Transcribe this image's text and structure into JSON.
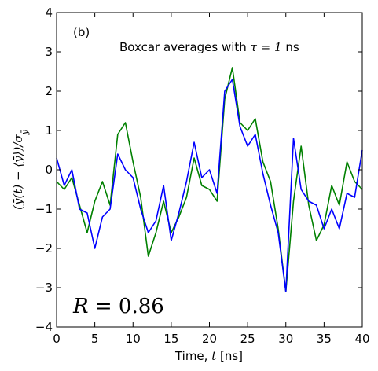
{
  "chart_data": {
    "type": "line",
    "panel_label": "(b)",
    "title_prefix": "Boxcar averages with ",
    "title_math": "τ",
    "title_eq": " = 1",
    "title_suffix": " ns",
    "xlabel_prefix": "Time, ",
    "xlabel_math": "t",
    "xlabel_suffix": " [ns]",
    "ylabel_math": "(ȳ(t) − ⟨ȳ⟩)/σ",
    "ylabel_sub": "ȳ",
    "corr_label_math": "R",
    "corr_label_eq": " = ",
    "corr_label_value": "0.86",
    "xlim": [
      0,
      40
    ],
    "ylim": [
      -4,
      4
    ],
    "x_ticks": [
      "0",
      "5",
      "10",
      "15",
      "20",
      "25",
      "30",
      "35",
      "40"
    ],
    "y_ticks": [
      "4",
      "3",
      "2",
      "1",
      "0",
      "−1",
      "−2",
      "−3",
      "−4"
    ],
    "x_tick_values": [
      0,
      5,
      10,
      15,
      20,
      25,
      30,
      35,
      40
    ],
    "y_tick_values": [
      4,
      3,
      2,
      1,
      0,
      -1,
      -2,
      -3,
      -4
    ],
    "colors": {
      "green": "#008000",
      "blue": "#0000ff"
    },
    "series": [
      {
        "color": "green",
        "x": [
          0,
          1,
          2,
          3,
          4,
          5,
          6,
          7,
          8,
          9,
          10,
          11,
          12,
          13,
          14,
          15,
          16,
          17,
          18,
          19,
          20,
          21,
          22,
          23,
          24,
          25,
          26,
          27,
          28,
          29,
          30,
          31,
          32,
          33,
          34,
          35,
          36,
          37,
          38,
          39,
          40
        ],
        "y": [
          -0.3,
          -0.5,
          -0.2,
          -0.9,
          -1.6,
          -0.8,
          -0.3,
          -0.9,
          0.9,
          1.2,
          0.2,
          -0.7,
          -2.2,
          -1.6,
          -0.8,
          -1.6,
          -1.2,
          -0.7,
          0.3,
          -0.4,
          -0.5,
          -0.8,
          1.8,
          2.6,
          1.2,
          1.0,
          1.3,
          0.2,
          -0.3,
          -1.5,
          -3.1,
          -0.8,
          0.6,
          -0.9,
          -1.8,
          -1.4,
          -0.4,
          -0.9,
          0.2,
          -0.3,
          -0.5
        ]
      },
      {
        "color": "blue",
        "x": [
          0,
          1,
          2,
          3,
          4,
          5,
          6,
          7,
          8,
          9,
          10,
          11,
          12,
          13,
          14,
          15,
          16,
          17,
          18,
          19,
          20,
          21,
          22,
          23,
          24,
          25,
          26,
          27,
          28,
          29,
          30,
          31,
          32,
          33,
          34,
          35,
          36,
          37,
          38,
          39,
          40
        ],
        "y": [
          0.3,
          -0.4,
          0.0,
          -1.0,
          -1.1,
          -2.0,
          -1.2,
          -1.0,
          0.4,
          0.0,
          -0.2,
          -1.0,
          -1.6,
          -1.3,
          -0.4,
          -1.8,
          -1.1,
          -0.3,
          0.7,
          -0.2,
          0.0,
          -0.6,
          2.0,
          2.3,
          1.1,
          0.6,
          0.9,
          -0.1,
          -0.9,
          -1.6,
          -3.1,
          0.8,
          -0.5,
          -0.8,
          -0.9,
          -1.5,
          -1.0,
          -1.5,
          -0.6,
          -0.7,
          0.5
        ]
      }
    ]
  }
}
